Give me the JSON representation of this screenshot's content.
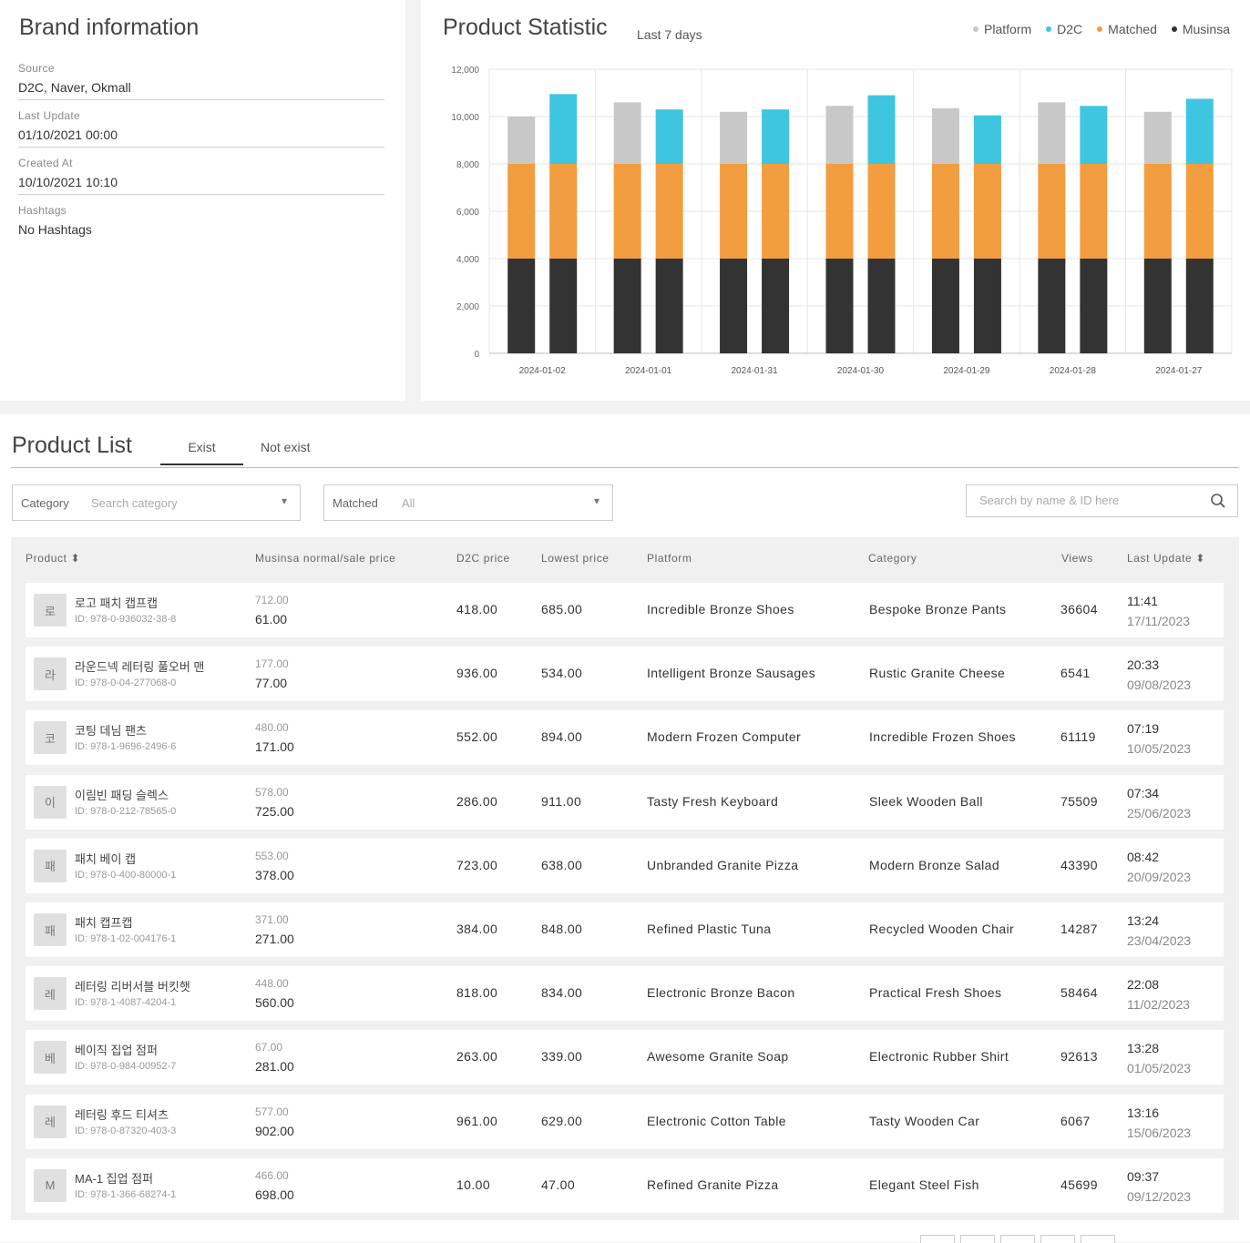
{
  "brand": {
    "title": "Brand information",
    "fields": [
      {
        "label": "Source",
        "value": "D2C, Naver, Okmall"
      },
      {
        "label": "Last Update",
        "value": "01/10/2021 00:00"
      },
      {
        "label": "Created At",
        "value": "10/10/2021 10:10"
      },
      {
        "label": "Hashtags",
        "value": "No Hashtags"
      }
    ]
  },
  "stats": {
    "title": "Product Statistic",
    "subtitle": "Last 7 days",
    "legend": [
      {
        "name": "Platform",
        "color": "#c8c8c8"
      },
      {
        "name": "D2C",
        "color": "#3ec6e0"
      },
      {
        "name": "Matched",
        "color": "#f29d3f"
      },
      {
        "name": "Musinsa",
        "color": "#333333"
      }
    ]
  },
  "chart_data": {
    "type": "bar",
    "stacked": true,
    "categories": [
      "2024-01-02",
      "2024-01-01",
      "2024-01-31",
      "2024-01-30",
      "2024-01-29",
      "2024-01-28",
      "2024-01-27"
    ],
    "ylim": [
      0,
      12000
    ],
    "yticks": [
      "0",
      "2,000",
      "4,000",
      "6,000",
      "8,000",
      "10,000",
      "12,000"
    ],
    "grid": true,
    "legend_position": "top-right",
    "bar_groups": [
      {
        "stack": "left",
        "segments": [
          {
            "series": "Musinsa",
            "values": [
              4000,
              4000,
              4000,
              4000,
              4000,
              4000,
              4000
            ]
          },
          {
            "series": "Matched",
            "values": [
              4000,
              4000,
              4000,
              4000,
              4000,
              4000,
              4000
            ]
          },
          {
            "series": "Platform",
            "values": [
              2000,
              2600,
              2200,
              2450,
              2350,
              2600,
              2200
            ]
          }
        ]
      },
      {
        "stack": "right",
        "segments": [
          {
            "series": "Musinsa",
            "values": [
              4000,
              4000,
              4000,
              4000,
              4000,
              4000,
              4000
            ]
          },
          {
            "series": "Matched",
            "values": [
              4000,
              4000,
              4000,
              4000,
              4000,
              4000,
              4000
            ]
          },
          {
            "series": "D2C",
            "values": [
              2950,
              2300,
              2300,
              2900,
              2050,
              2450,
              2750
            ]
          }
        ]
      }
    ]
  },
  "list": {
    "title": "Product List",
    "tabs": [
      "Exist",
      "Not exist"
    ],
    "category_label": "Category",
    "category_placeholder": "Search category",
    "matched_label": "Matched",
    "matched_value": "All",
    "search_placeholder": "Search by name & ID here",
    "headers": [
      "Product",
      "Musinsa normal/sale price",
      "D2C price",
      "Lowest price",
      "Platform",
      "Category",
      "Views",
      "Last Update"
    ],
    "rows": [
      {
        "thumb": "로",
        "name": "로고 패치 캡프캡",
        "id": "ID: 978-0-936032-38-8",
        "old_price": "712.00",
        "price": "61.00",
        "d2c": "418.00",
        "lowest": "685.00",
        "platform": "Incredible Bronze Shoes",
        "category": "Bespoke Bronze Pants",
        "views": "36604",
        "time": "11:41",
        "date": "17/11/2023"
      },
      {
        "thumb": "라",
        "name": "라운드넥 레터링 풀오버 맨",
        "id": "ID: 978-0-04-277068-0",
        "old_price": "177.00",
        "price": "77.00",
        "d2c": "936.00",
        "lowest": "534.00",
        "platform": "Intelligent Bronze Sausages",
        "category": "Rustic Granite Cheese",
        "views": "6541",
        "time": "20:33",
        "date": "09/08/2023"
      },
      {
        "thumb": "코",
        "name": "코팅 데님 팬츠",
        "id": "ID: 978-1-9696-2496-6",
        "old_price": "480.00",
        "price": "171.00",
        "d2c": "552.00",
        "lowest": "894.00",
        "platform": "Modern Frozen Computer",
        "category": "Incredible Frozen Shoes",
        "views": "61119",
        "time": "07:19",
        "date": "10/05/2023"
      },
      {
        "thumb": "이",
        "name": "이림빈 패딩 슬렉스",
        "id": "ID: 978-0-212-78565-0",
        "old_price": "578.00",
        "price": "725.00",
        "d2c": "286.00",
        "lowest": "911.00",
        "platform": "Tasty Fresh Keyboard",
        "category": "Sleek Wooden Ball",
        "views": "75509",
        "time": "07:34",
        "date": "25/06/2023"
      },
      {
        "thumb": "패",
        "name": "패치 베이 캡",
        "id": "ID: 978-0-400-80000-1",
        "old_price": "553.00",
        "price": "378.00",
        "d2c": "723.00",
        "lowest": "638.00",
        "platform": "Unbranded Granite Pizza",
        "category": "Modern Bronze Salad",
        "views": "43390",
        "time": "08:42",
        "date": "20/09/2023"
      },
      {
        "thumb": "패",
        "name": "패치 캡프캡",
        "id": "ID: 978-1-02-004176-1",
        "old_price": "371.00",
        "price": "271.00",
        "d2c": "384.00",
        "lowest": "848.00",
        "platform": "Refined Plastic Tuna",
        "category": "Recycled Wooden Chair",
        "views": "14287",
        "time": "13:24",
        "date": "23/04/2023"
      },
      {
        "thumb": "레",
        "name": "레터링 리버서블 버킷햇",
        "id": "ID: 978-1-4087-4204-1",
        "old_price": "448.00",
        "price": "560.00",
        "d2c": "818.00",
        "lowest": "834.00",
        "platform": "Electronic Bronze Bacon",
        "category": "Practical Fresh Shoes",
        "views": "58464",
        "time": "22:08",
        "date": "11/02/2023"
      },
      {
        "thumb": "베",
        "name": "베이직 집업 점퍼",
        "id": "ID: 978-0-984-00952-7",
        "old_price": "67.00",
        "price": "281.00",
        "d2c": "263.00",
        "lowest": "339.00",
        "platform": "Awesome Granite Soap",
        "category": "Electronic Rubber Shirt",
        "views": "92613",
        "time": "13:28",
        "date": "01/05/2023"
      },
      {
        "thumb": "레",
        "name": "레터링 후드 티셔츠",
        "id": "ID: 978-0-87320-403-3",
        "old_price": "577.00",
        "price": "902.00",
        "d2c": "961.00",
        "lowest": "629.00",
        "platform": "Electronic Cotton Table",
        "category": "Tasty Wooden Car",
        "views": "6067",
        "time": "13:16",
        "date": "15/06/2023"
      },
      {
        "thumb": "M",
        "name": "MA-1 집업 점퍼",
        "id": "ID: 978-1-366-68274-1",
        "old_price": "466.00",
        "price": "698.00",
        "d2c": "10.00",
        "lowest": "47.00",
        "platform": "Refined Granite Pizza",
        "category": "Elegant Steel Fish",
        "views": "45699",
        "time": "09:37",
        "date": "09/12/2023"
      }
    ]
  }
}
